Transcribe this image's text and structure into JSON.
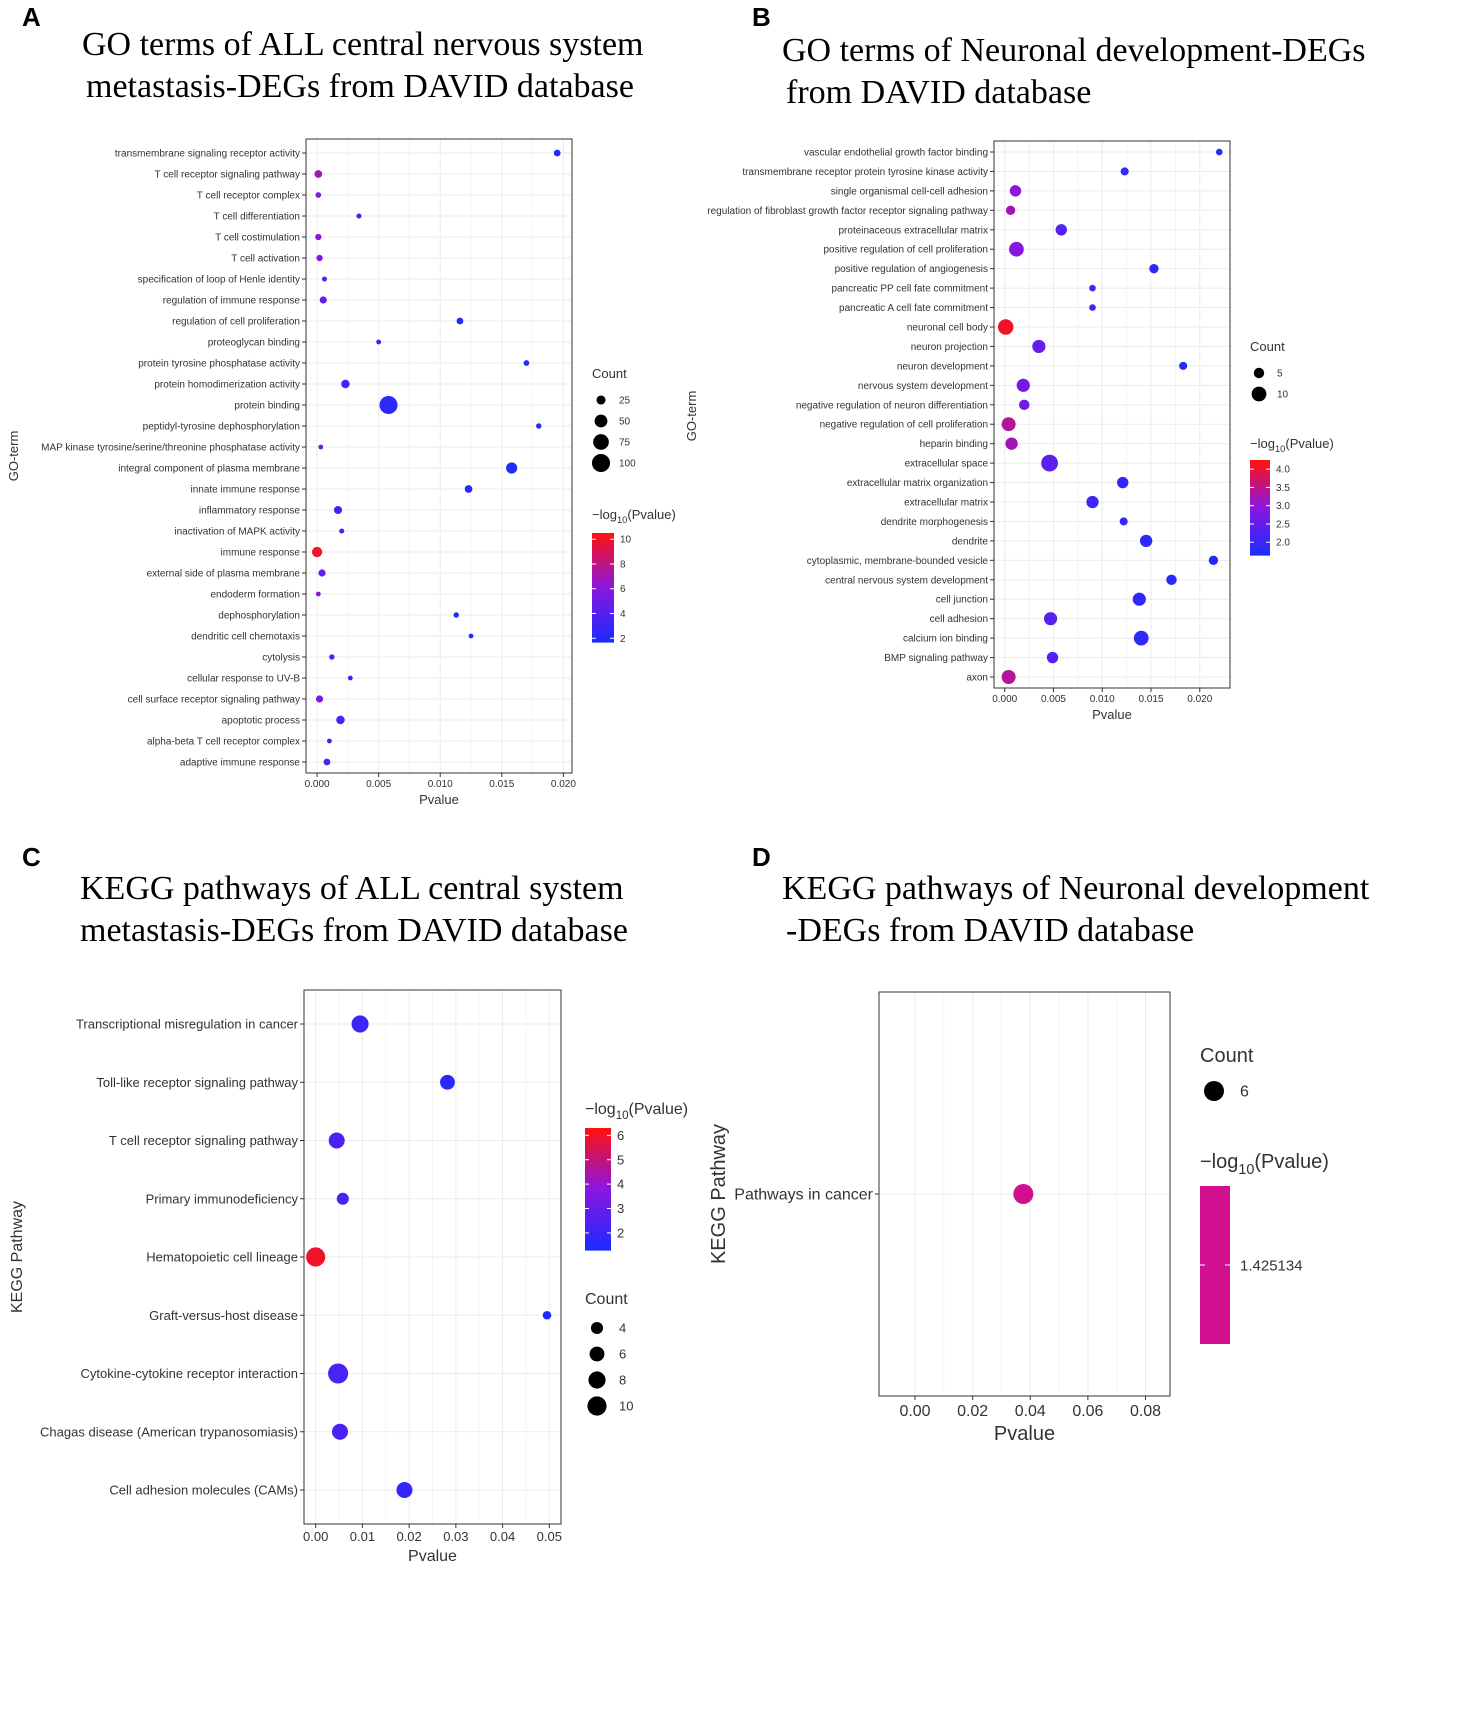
{
  "panels": [
    {
      "label": "A",
      "title_line1": "GO terms of ALL central nervous system",
      "title_line2": "metastasis-DEGs from DAVID database"
    },
    {
      "label": "B",
      "title_line1": "GO terms of Neuronal development-DEGs",
      "title_line2": "from DAVID database"
    },
    {
      "label": "C",
      "title_line1": "KEGG pathways of ALL central system",
      "title_line2": "metastasis-DEGs from DAVID database"
    },
    {
      "label": "D",
      "title_line1": "KEGG pathways of Neuronal development",
      "title_line2": "-DEGs from DAVID database"
    }
  ],
  "colors": {
    "low": "#1f2bff",
    "mid": "#8a16e0",
    "high": "#ff1111"
  },
  "chart_data": [
    {
      "type": "scatter",
      "xlabel": "Pvalue",
      "ylabel": "GO-term",
      "xlim": [
        -0.0009,
        0.0207
      ],
      "xticks": [
        0,
        0.005,
        0.01,
        0.015,
        0.02
      ],
      "xtick_labels": [
        "0.000",
        "0.005",
        "0.010",
        "0.015",
        "0.020"
      ],
      "color_legend": {
        "title": "-log10(Pvalue)",
        "range": [
          1.7,
          10.5
        ],
        "ticks": [
          10,
          8,
          6,
          4,
          2
        ],
        "tick_labels": [
          "10",
          "8",
          "6",
          "4",
          "2"
        ]
      },
      "size_legend": {
        "title": "Count",
        "values": [
          25,
          50,
          75,
          100
        ],
        "labels": [
          "25",
          "50",
          "75",
          "100"
        ],
        "max": 110
      },
      "points": [
        {
          "term": "transmembrane signaling receptor activity",
          "p": 0.0195,
          "count": 14,
          "logp": 1.7
        },
        {
          "term": "T cell receptor signaling pathway",
          "p": 0.0001,
          "count": 18,
          "logp": 7.0
        },
        {
          "term": "T cell receptor complex",
          "p": 0.0001,
          "count": 10,
          "logp": 6.0
        },
        {
          "term": "T cell differentiation",
          "p": 0.0034,
          "count": 8,
          "logp": 2.5
        },
        {
          "term": "T cell costimulation",
          "p": 0.0001,
          "count": 12,
          "logp": 6.0
        },
        {
          "term": "T cell activation",
          "p": 0.0002,
          "count": 12,
          "logp": 5.5
        },
        {
          "term": "specification of loop of Henle identity",
          "p": 0.0006,
          "count": 8,
          "logp": 4.0
        },
        {
          "term": "regulation of immune response",
          "p": 0.0005,
          "count": 16,
          "logp": 4.5
        },
        {
          "term": "regulation of cell proliferation",
          "p": 0.0116,
          "count": 14,
          "logp": 1.9
        },
        {
          "term": "proteoglycan binding",
          "p": 0.005,
          "count": 7,
          "logp": 2.3
        },
        {
          "term": "protein tyrosine phosphatase activity",
          "p": 0.017,
          "count": 10,
          "logp": 1.8
        },
        {
          "term": "protein homodimerization activity",
          "p": 0.0023,
          "count": 22,
          "logp": 3.0
        },
        {
          "term": "protein binding",
          "p": 0.0058,
          "count": 100,
          "logp": 2.2
        },
        {
          "term": "peptidyl-tyrosine dephosphorylation",
          "p": 0.018,
          "count": 9,
          "logp": 1.8
        },
        {
          "term": "MAP kinase tyrosine/serine/threonine phosphatase activity",
          "p": 0.0003,
          "count": 7,
          "logp": 5.0
        },
        {
          "term": "integral component of plasma membrane",
          "p": 0.0158,
          "count": 38,
          "logp": 1.8
        },
        {
          "term": "innate immune response",
          "p": 0.0123,
          "count": 18,
          "logp": 1.9
        },
        {
          "term": "inflammatory response",
          "p": 0.0017,
          "count": 20,
          "logp": 3.2
        },
        {
          "term": "inactivation of MAPK activity",
          "p": 0.002,
          "count": 8,
          "logp": 3.0
        },
        {
          "term": "immune response",
          "p": 0.0,
          "count": 32,
          "logp": 10.0
        },
        {
          "term": "external side of plasma membrane",
          "p": 0.0004,
          "count": 16,
          "logp": 4.5
        },
        {
          "term": "endoderm formation",
          "p": 0.0001,
          "count": 7,
          "logp": 6.0
        },
        {
          "term": "dephosphorylation",
          "p": 0.0113,
          "count": 9,
          "logp": 1.9
        },
        {
          "term": "dendritic cell chemotaxis",
          "p": 0.0125,
          "count": 7,
          "logp": 1.9
        },
        {
          "term": "cytolysis",
          "p": 0.0012,
          "count": 9,
          "logp": 3.5
        },
        {
          "term": "cellular response to UV-B",
          "p": 0.0027,
          "count": 7,
          "logp": 2.6
        },
        {
          "term": "cell surface receptor signaling pathway",
          "p": 0.0002,
          "count": 16,
          "logp": 5.5
        },
        {
          "term": "apoptotic process",
          "p": 0.0019,
          "count": 22,
          "logp": 3.0
        },
        {
          "term": "alpha-beta T cell receptor complex",
          "p": 0.001,
          "count": 7,
          "logp": 3.5
        },
        {
          "term": "adaptive immune response",
          "p": 0.0008,
          "count": 14,
          "logp": 3.8
        }
      ]
    },
    {
      "type": "scatter",
      "xlabel": "Pvalue",
      "ylabel": "GO-term",
      "xlim": [
        -0.0011,
        0.0231
      ],
      "xticks": [
        0,
        0.005,
        0.01,
        0.015,
        0.02
      ],
      "xtick_labels": [
        "0.000",
        "0.005",
        "0.010",
        "0.015",
        "0.020"
      ],
      "color_legend": {
        "title": "-log10(Pvalue)",
        "range": [
          1.65,
          4.25
        ],
        "ticks": [
          4.0,
          3.5,
          3.0,
          2.5,
          2.0
        ],
        "tick_labels": [
          "4.0",
          "3.5",
          "3.0",
          "2.5",
          "2.0"
        ]
      },
      "size_legend": {
        "title": "Count",
        "values": [
          5,
          10
        ],
        "labels": [
          "5",
          "10"
        ],
        "max": 13
      },
      "points": [
        {
          "term": "vascular endothelial growth factor binding",
          "p": 0.022,
          "count": 2,
          "logp": 1.66
        },
        {
          "term": "transmembrane receptor protein tyrosine kinase activity",
          "p": 0.0123,
          "count": 3,
          "logp": 1.9
        },
        {
          "term": "single organismal cell-cell adhesion",
          "p": 0.0011,
          "count": 6,
          "logp": 3.0
        },
        {
          "term": "regulation of fibroblast growth factor receptor signaling pathway",
          "p": 0.0006,
          "count": 4,
          "logp": 3.2
        },
        {
          "term": "proteinaceous extracellular matrix",
          "p": 0.0058,
          "count": 6,
          "logp": 2.3
        },
        {
          "term": "positive regulation of cell proliferation",
          "p": 0.0012,
          "count": 10,
          "logp": 2.9
        },
        {
          "term": "positive regulation of angiogenesis",
          "p": 0.0153,
          "count": 4,
          "logp": 1.8
        },
        {
          "term": "pancreatic PP cell fate commitment",
          "p": 0.009,
          "count": 2,
          "logp": 2.05
        },
        {
          "term": "pancreatic A cell fate commitment",
          "p": 0.009,
          "count": 2,
          "logp": 2.05
        },
        {
          "term": "neuronal cell body",
          "p": 0.0001,
          "count": 11,
          "logp": 4.1
        },
        {
          "term": "neuron projection",
          "p": 0.0035,
          "count": 8,
          "logp": 2.5
        },
        {
          "term": "neuron development",
          "p": 0.0183,
          "count": 3,
          "logp": 1.74
        },
        {
          "term": "nervous system development",
          "p": 0.0019,
          "count": 8,
          "logp": 2.7
        },
        {
          "term": "negative regulation of neuron differentiation",
          "p": 0.002,
          "count": 5,
          "logp": 2.7
        },
        {
          "term": "negative regulation of cell proliferation",
          "p": 0.0004,
          "count": 9,
          "logp": 3.4
        },
        {
          "term": "heparin binding",
          "p": 0.0007,
          "count": 7,
          "logp": 3.2
        },
        {
          "term": "extracellular space",
          "p": 0.0046,
          "count": 13,
          "logp": 2.35
        },
        {
          "term": "extracellular matrix organization",
          "p": 0.0121,
          "count": 6,
          "logp": 1.92
        },
        {
          "term": "extracellular matrix",
          "p": 0.009,
          "count": 7,
          "logp": 2.05
        },
        {
          "term": "dendrite morphogenesis",
          "p": 0.0122,
          "count": 3,
          "logp": 1.92
        },
        {
          "term": "dendrite",
          "p": 0.0145,
          "count": 7,
          "logp": 1.84
        },
        {
          "term": "cytoplasmic, membrane-bounded vesicle",
          "p": 0.0214,
          "count": 4,
          "logp": 1.67
        },
        {
          "term": "central nervous system development",
          "p": 0.0171,
          "count": 5,
          "logp": 1.77
        },
        {
          "term": "cell junction",
          "p": 0.0138,
          "count": 8,
          "logp": 1.86
        },
        {
          "term": "cell adhesion",
          "p": 0.0047,
          "count": 8,
          "logp": 2.33
        },
        {
          "term": "calcium ion binding",
          "p": 0.014,
          "count": 10,
          "logp": 1.85
        },
        {
          "term": "BMP signaling pathway",
          "p": 0.0049,
          "count": 6,
          "logp": 2.3
        },
        {
          "term": "axon",
          "p": 0.0004,
          "count": 9,
          "logp": 3.4
        }
      ]
    },
    {
      "type": "scatter",
      "xlabel": "Pvalue",
      "ylabel": "KEGG Pathway",
      "xlim": [
        -0.0025,
        0.0525
      ],
      "xticks": [
        0,
        0.01,
        0.02,
        0.03,
        0.04,
        0.05
      ],
      "xtick_labels": [
        "0.00",
        "0.01",
        "0.02",
        "0.03",
        "0.04",
        "0.05"
      ],
      "color_legend": {
        "title": "-log10(Pvalue)",
        "range": [
          1.3,
          6.3
        ],
        "ticks": [
          6,
          5,
          4,
          3,
          2
        ],
        "tick_labels": [
          "6",
          "5",
          "4",
          "3",
          "2"
        ]
      },
      "size_legend": {
        "title": "Count",
        "values": [
          4,
          6,
          8,
          10
        ],
        "labels": [
          "4",
          "6",
          "8",
          "10"
        ],
        "max": 12
      },
      "points": [
        {
          "term": "Transcriptional misregulation in cancer",
          "p": 0.0095,
          "count": 8,
          "logp": 2.0
        },
        {
          "term": "Toll-like receptor signaling pathway",
          "p": 0.0282,
          "count": 6,
          "logp": 1.55
        },
        {
          "term": "T cell receptor signaling pathway",
          "p": 0.0045,
          "count": 7,
          "logp": 2.35
        },
        {
          "term": "Primary immunodeficiency",
          "p": 0.0058,
          "count": 4,
          "logp": 2.25
        },
        {
          "term": "Hematopoietic cell lineage",
          "p": 0.0,
          "count": 10,
          "logp": 6.0
        },
        {
          "term": "Graft-versus-host disease",
          "p": 0.0495,
          "count": 2,
          "logp": 1.3
        },
        {
          "term": "Cytokine-cytokine receptor interaction",
          "p": 0.0048,
          "count": 11,
          "logp": 2.3
        },
        {
          "term": "Chagas disease (American trypanosomiasis)",
          "p": 0.0052,
          "count": 7,
          "logp": 2.3
        },
        {
          "term": "Cell adhesion molecules (CAMs)",
          "p": 0.019,
          "count": 7,
          "logp": 1.72
        }
      ]
    },
    {
      "type": "scatter",
      "xlabel": "Pvalue",
      "ylabel": "KEGG Pathway",
      "xlim": [
        -0.0125,
        0.0885
      ],
      "xticks": [
        0,
        0.02,
        0.04,
        0.06,
        0.08
      ],
      "xtick_labels": [
        "0.00",
        "0.02",
        "0.04",
        "0.06",
        "0.08"
      ],
      "color_legend": {
        "title": "-log10(Pvalue)",
        "tick_labels": [
          "1.425134"
        ],
        "single_color": "#d0108e"
      },
      "size_legend": {
        "title": "Count",
        "values": [
          6
        ],
        "labels": [
          "6"
        ],
        "max": 6
      },
      "points": [
        {
          "term": "Pathways in cancer",
          "p": 0.0376,
          "count": 6,
          "logp": 1.425134
        }
      ]
    }
  ]
}
